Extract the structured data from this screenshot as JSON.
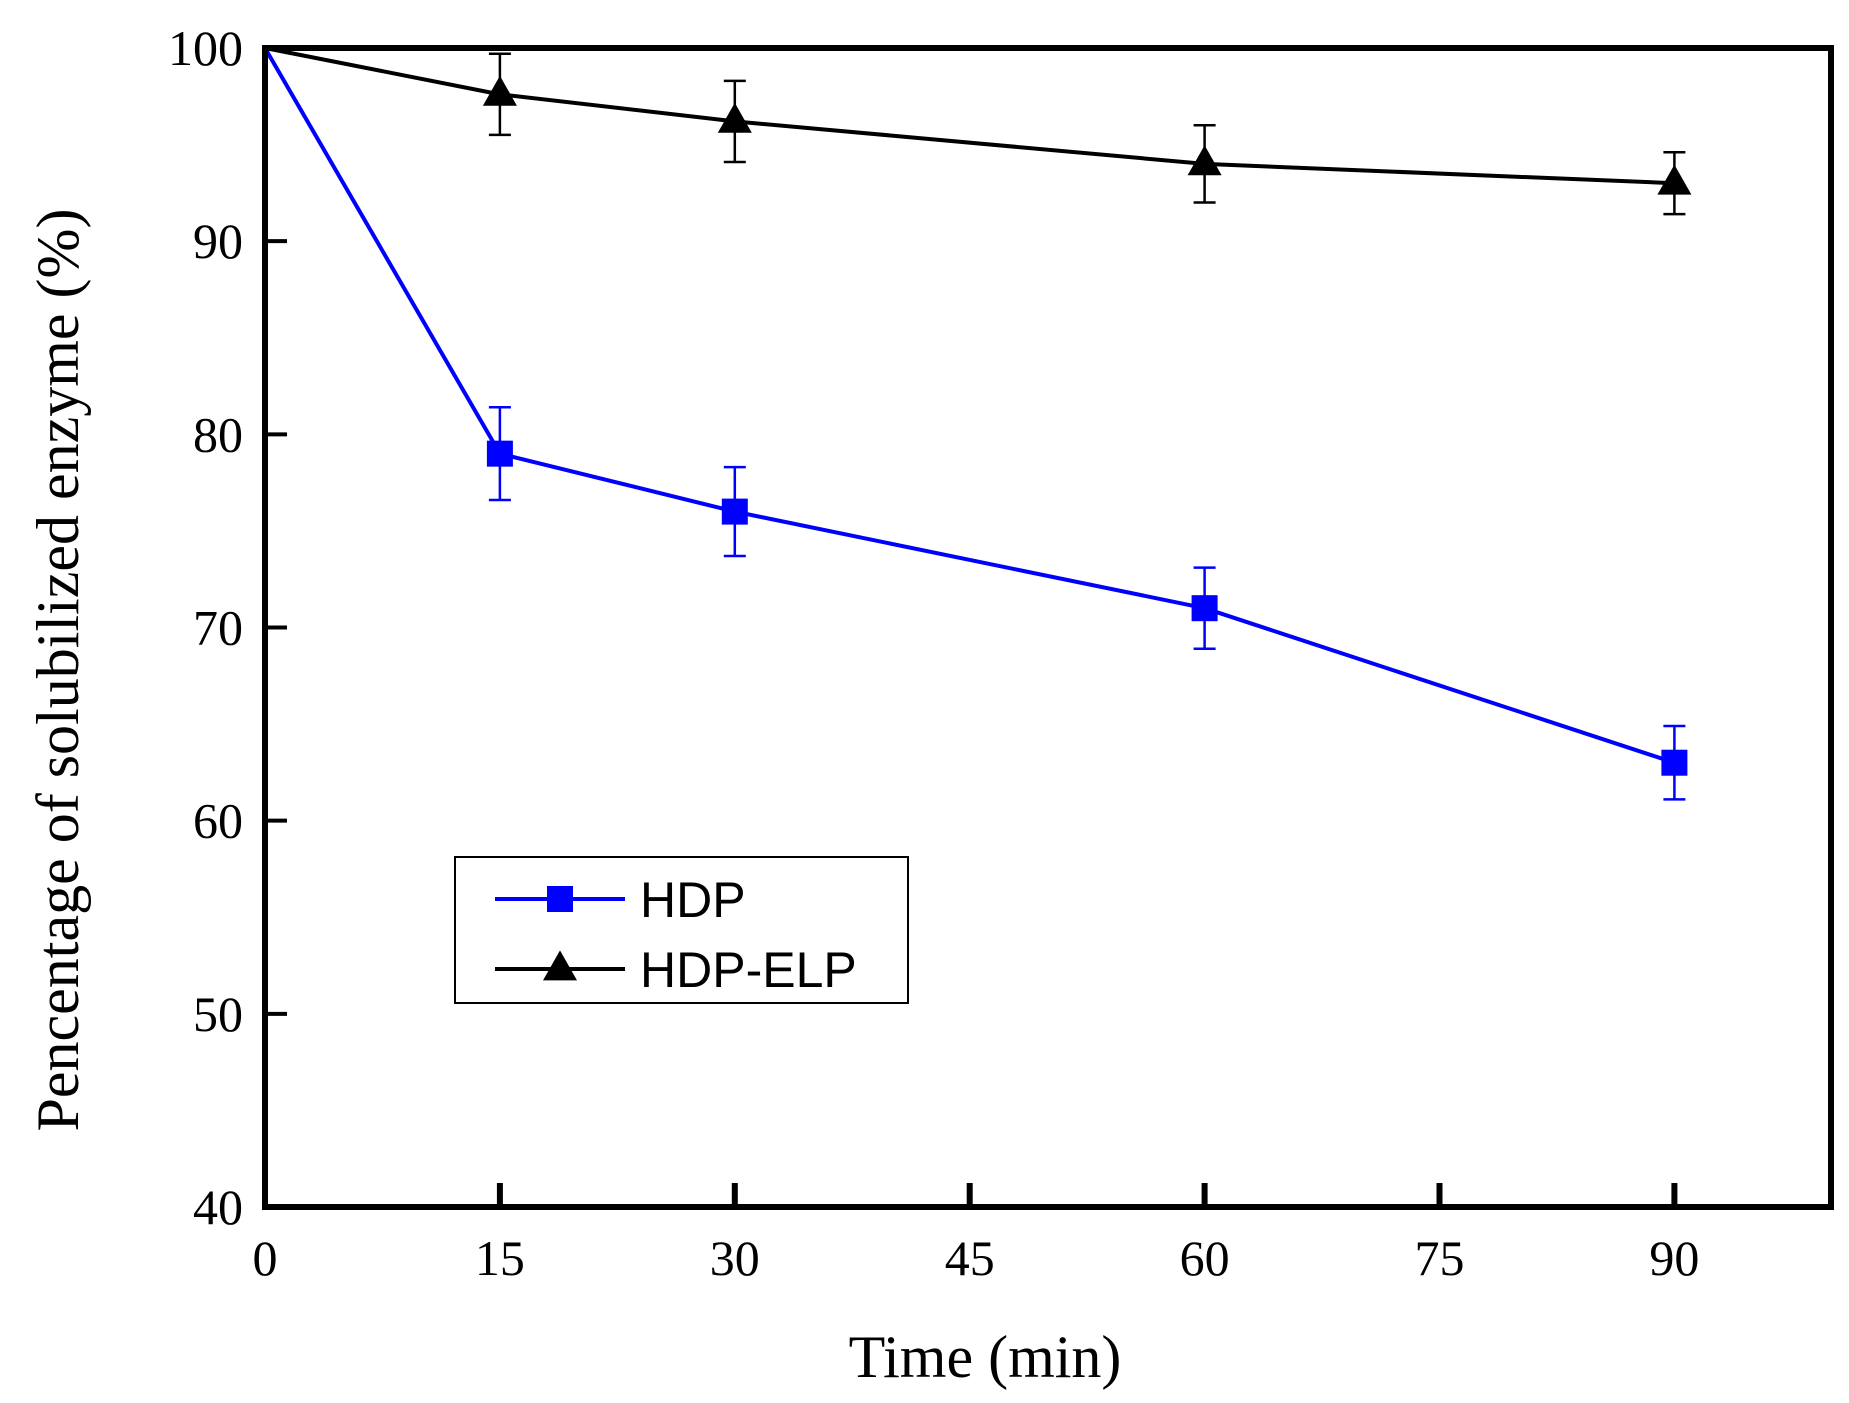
{
  "chart_data": {
    "type": "line",
    "title": "",
    "xlabel": "Time (min)",
    "ylabel": "Pencentage of solubilized enzyme (%)",
    "xlim": [
      0,
      100
    ],
    "ylim": [
      40,
      100
    ],
    "xticks": [
      0,
      15,
      30,
      45,
      60,
      75,
      90
    ],
    "yticks": [
      40,
      50,
      60,
      70,
      80,
      90,
      100
    ],
    "grid": false,
    "legend_position": "lower-left",
    "series": [
      {
        "name": "HDP",
        "color": "#0000ff",
        "marker": "square",
        "x": [
          0,
          15,
          30,
          60,
          90
        ],
        "y": [
          100,
          79,
          76,
          71,
          63
        ],
        "error": [
          0,
          2.4,
          2.3,
          2.1,
          1.9
        ]
      },
      {
        "name": "HDP-ELP",
        "color": "#000000",
        "marker": "triangle",
        "x": [
          0,
          15,
          30,
          60,
          90
        ],
        "y": [
          100,
          97.6,
          96.2,
          94,
          93
        ],
        "error": [
          0,
          2.1,
          2.1,
          2.0,
          1.6
        ]
      }
    ]
  }
}
